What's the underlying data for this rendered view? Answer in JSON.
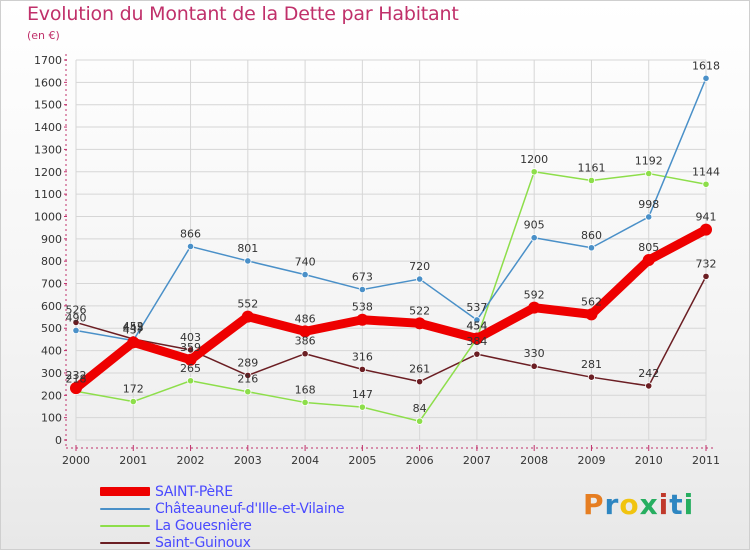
{
  "header": {
    "title": "Evolution du Montant de la Dette par Habitant",
    "unit": "(en €)"
  },
  "logo": {
    "letters": [
      "P",
      "r",
      "o",
      "x",
      "i",
      "t",
      "i"
    ],
    "colors": [
      "#e67e22",
      "#2e86c1",
      "#f1c40f",
      "#27ae60",
      "#c0392b",
      "#2e86c1",
      "#27ae60"
    ]
  },
  "chart_data": {
    "type": "line",
    "x": [
      "2000",
      "2001",
      "2002",
      "2003",
      "2004",
      "2005",
      "2006",
      "2007",
      "2008",
      "2009",
      "2010",
      "2011"
    ],
    "ylim": [
      0,
      1700
    ],
    "yticks": [
      0,
      100,
      200,
      300,
      400,
      500,
      600,
      700,
      800,
      900,
      1000,
      1100,
      1200,
      1300,
      1400,
      1500,
      1600,
      1700
    ],
    "grid": true,
    "legend_position": "bottom-left",
    "series": [
      {
        "name": "Saint-Guinoux",
        "color": "#6b1e23",
        "values": [
          526,
          452,
          403,
          289,
          386,
          316,
          261,
          384,
          330,
          281,
          242,
          732
        ]
      },
      {
        "name": "La Gouesnière",
        "color": "#8dde4a",
        "values": [
          218,
          172,
          265,
          216,
          168,
          147,
          84,
          454,
          1200,
          1161,
          1192,
          1144
        ]
      },
      {
        "name": "Châteauneuf-d'Ille-et-Vilaine",
        "color": "#4a90c8",
        "values": [
          490,
          445,
          866,
          801,
          740,
          673,
          720,
          537,
          905,
          860,
          998,
          1618
        ]
      },
      {
        "name": "SAINT-PèRE",
        "color": "#ee0000",
        "values": [
          232,
          437,
          359,
          552,
          486,
          538,
          522,
          454,
          592,
          562,
          805,
          941
        ]
      }
    ]
  }
}
